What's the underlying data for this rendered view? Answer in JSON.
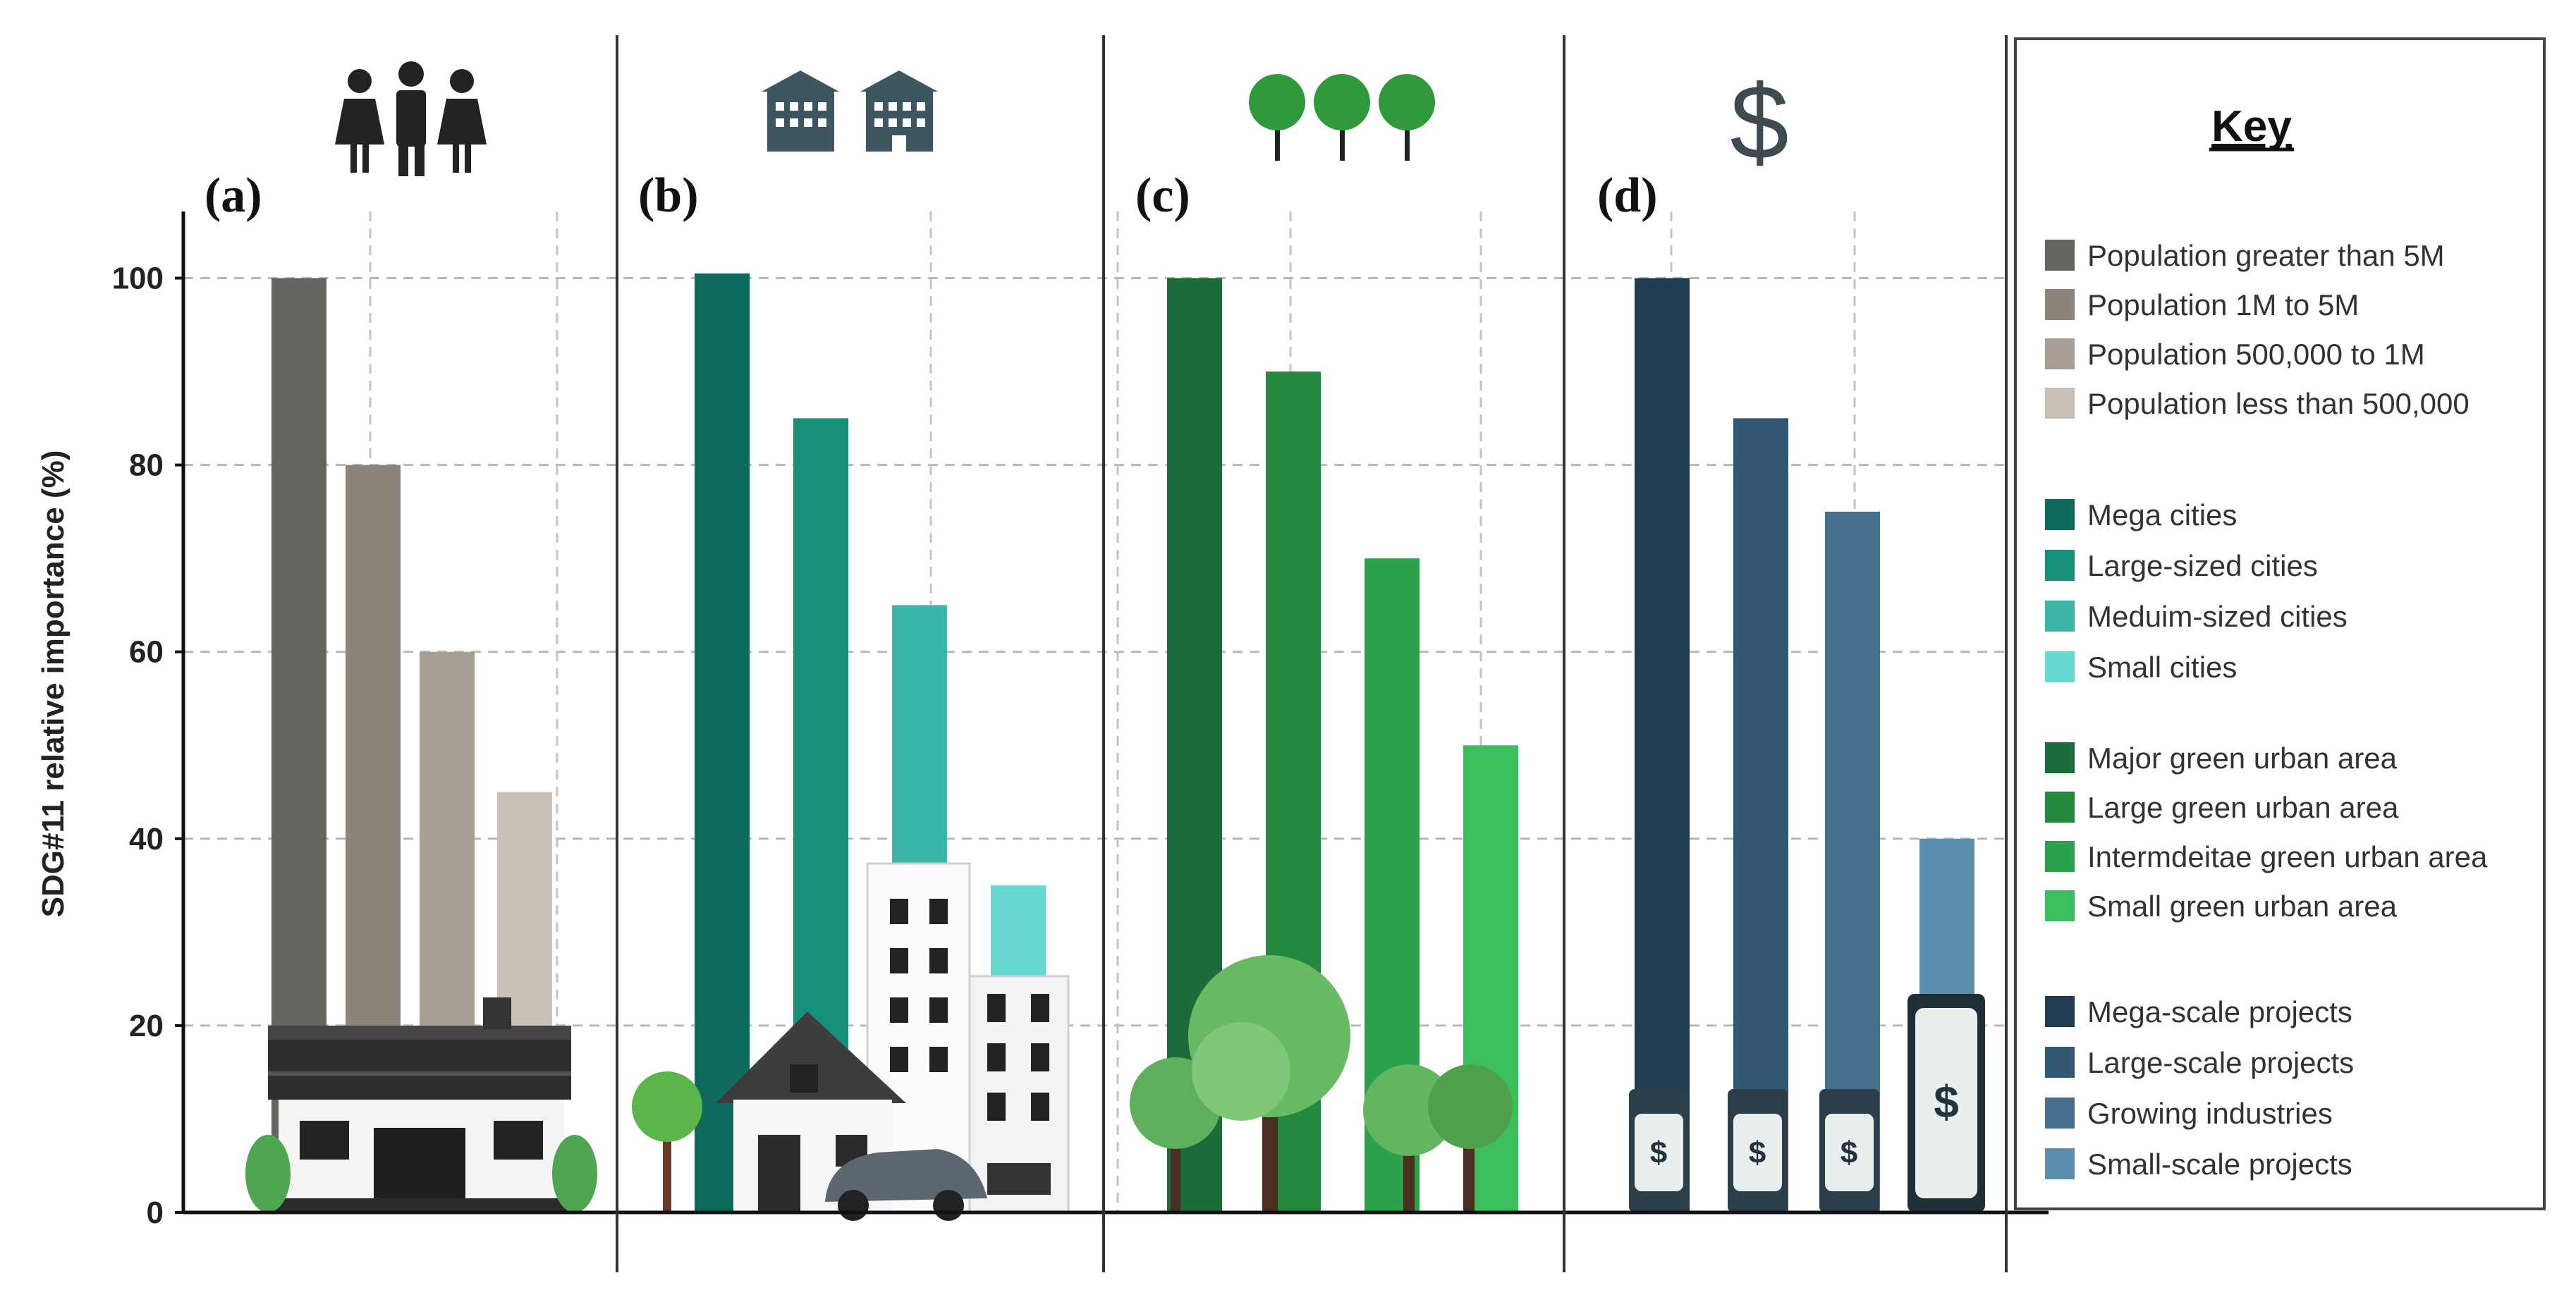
{
  "chart_data": {
    "type": "bar",
    "ylabel": "SDG#11 relative importance (%)",
    "ylim": [
      0,
      110
    ],
    "yticks": [
      0,
      20,
      40,
      60,
      80,
      100
    ],
    "grid": true,
    "panels": [
      {
        "label": "(a)",
        "icon": "people-icon",
        "categories": [
          "Population greater than 5M",
          "Population 1M to 5M",
          "Population 500,000 to 1M",
          "Population less than 500,000"
        ],
        "values": [
          100,
          80,
          60,
          45
        ],
        "colors": [
          "#65645f",
          "#8b847b",
          "#a89f94",
          "#c9c1b7"
        ]
      },
      {
        "label": "(b)",
        "icon": "buildings-icon",
        "categories": [
          "Mega cities",
          "Large-sized cities",
          "Meduim-sized cities",
          "Small cities"
        ],
        "values": [
          100.5,
          85,
          65,
          35
        ],
        "colors": [
          "#0e6b5c",
          "#179079",
          "#3bb5a6",
          "#66d9d2"
        ]
      },
      {
        "label": "(c)",
        "icon": "trees-icon",
        "categories": [
          "Major green urban area",
          "Large green urban area",
          "Intermdeitae green urban area",
          "Small green urban area"
        ],
        "values": [
          100,
          90,
          70,
          50
        ],
        "colors": [
          "#1d6b3a",
          "#23893f",
          "#2ca14c",
          "#3bbf5e"
        ]
      },
      {
        "label": "(d)",
        "icon": "dollar-icon",
        "icon_text": "$",
        "categories": [
          "Mega-scale projects",
          "Large-scale projects",
          "Growing industries",
          "Small-scale projects"
        ],
        "values": [
          100,
          85,
          75,
          40
        ],
        "colors": [
          "#213b52",
          "#325873",
          "#456e8f",
          "#5d8eb0"
        ]
      }
    ],
    "legend": {
      "title": "Key",
      "placement": "right"
    }
  }
}
